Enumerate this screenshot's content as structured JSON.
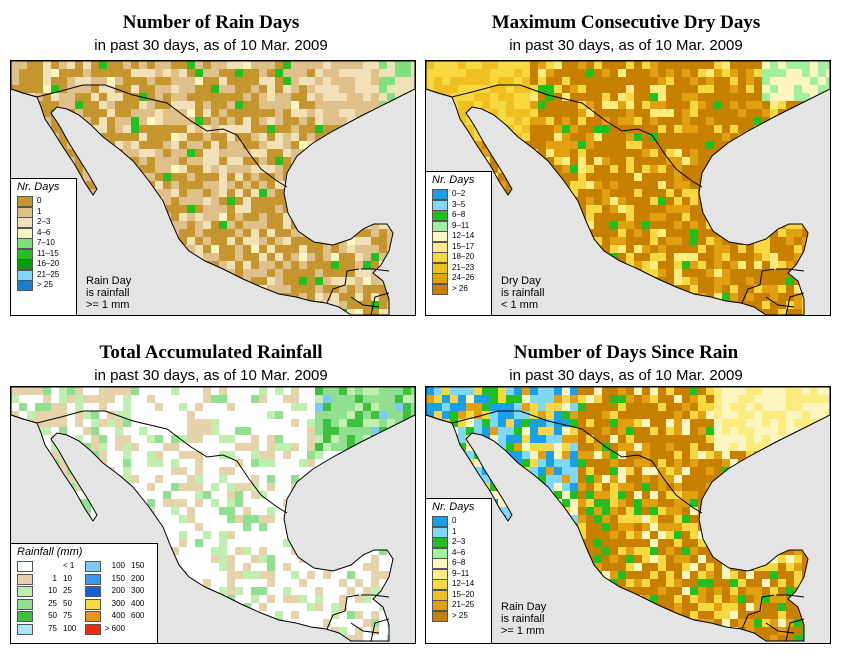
{
  "panels": [
    {
      "title": "Number of Rain Days",
      "subtitle": "in past 30 days, as of  10 Mar. 2009",
      "legend_title": "Nr. Days",
      "legend": [
        {
          "label": "0",
          "color": "#c6962e"
        },
        {
          "label": "1",
          "color": "#dfc08b"
        },
        {
          "label": "2–3",
          "color": "#f1e0b8"
        },
        {
          "label": "4–6",
          "color": "#fbf6c0"
        },
        {
          "label": "7–10",
          "color": "#7fe07f"
        },
        {
          "label": "11–15",
          "color": "#20c020"
        },
        {
          "label": "16–20",
          "color": "#109810"
        },
        {
          "label": "21–25",
          "color": "#7fd8f8"
        },
        {
          "label": "> 25",
          "color": "#1a7fd0"
        }
      ],
      "note": [
        "Rain Day",
        "is rainfall",
        ">= 1 mm"
      ]
    },
    {
      "title": "Maximum Consecutive Dry Days",
      "subtitle": "in past 30 days, as of  10 Mar. 2009",
      "legend_title": "Nr. Days",
      "legend": [
        {
          "label": "0–2",
          "color": "#1a9fe8"
        },
        {
          "label": "3–5",
          "color": "#7fd8f8"
        },
        {
          "label": "6–8",
          "color": "#20c020"
        },
        {
          "label": "9–11",
          "color": "#a0f0a0"
        },
        {
          "label": "12–14",
          "color": "#fbf6c0"
        },
        {
          "label": "15–17",
          "color": "#fcec80"
        },
        {
          "label": "18–20",
          "color": "#f8d840"
        },
        {
          "label": "21–23",
          "color": "#f0c020"
        },
        {
          "label": "24–26",
          "color": "#e0a010"
        },
        {
          "label": "> 26",
          "color": "#c88000"
        }
      ],
      "note": [
        "Dry Day",
        "is rainfall",
        "< 1 mm"
      ]
    },
    {
      "title": "Total Accumulated Rainfall",
      "subtitle": "in past 30 days, as of  10 Mar. 2009",
      "legend_title": "Rainfall (mm)",
      "legend_left": [
        {
          "a": "",
          "b": "< 1",
          "color": "#ffffff"
        },
        {
          "a": "1",
          "b": "10",
          "color": "#e6d3ac"
        },
        {
          "a": "10",
          "b": "25",
          "color": "#c0f0b0"
        },
        {
          "a": "25",
          "b": "50",
          "color": "#90e090"
        },
        {
          "a": "50",
          "b": "75",
          "color": "#40c040"
        },
        {
          "a": "75",
          "b": "100",
          "color": "#a8e8f8"
        }
      ],
      "legend_right": [
        {
          "a": "100",
          "b": "150",
          "color": "#7fc8f8"
        },
        {
          "a": "150",
          "b": "200",
          "color": "#3a98f0"
        },
        {
          "a": "200",
          "b": "300",
          "color": "#1a60d0"
        },
        {
          "a": "300",
          "b": "400",
          "color": "#f8d840"
        },
        {
          "a": "400",
          "b": "600",
          "color": "#f09020"
        },
        {
          "a": "> 600",
          "b": "",
          "color": "#e83010"
        }
      ]
    },
    {
      "title": "Number of Days Since Rain",
      "subtitle": "in past 30 days, as of  10 Mar. 2009",
      "legend_title": "Nr. Days",
      "legend": [
        {
          "label": "0",
          "color": "#1a9fe8"
        },
        {
          "label": "1",
          "color": "#7fd8f8"
        },
        {
          "label": "2–3",
          "color": "#20c020"
        },
        {
          "label": "4–6",
          "color": "#a0f0a0"
        },
        {
          "label": "6–8",
          "color": "#fbf6c0"
        },
        {
          "label": "9–11",
          "color": "#fcec80"
        },
        {
          "label": "12–14",
          "color": "#f8d840"
        },
        {
          "label": "15–20",
          "color": "#f0c020"
        },
        {
          "label": "21–25",
          "color": "#e0a010"
        },
        {
          "label": "> 25",
          "color": "#c88000"
        }
      ],
      "note": [
        "Rain Day",
        "is rainfall",
        ">= 1 mm"
      ]
    }
  ]
}
